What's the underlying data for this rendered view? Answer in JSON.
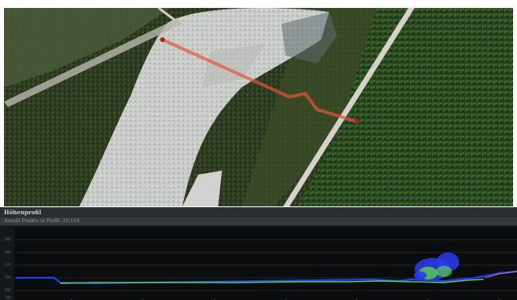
{
  "profile_panel": {
    "title": "Höhenprofil",
    "points_label": "Anzahl Punkte in Profil:",
    "points_value": "20,119"
  },
  "y_axis": {
    "tick_labels": [
      "290",
      "280",
      "270",
      "260",
      "250",
      "240"
    ]
  },
  "colors": {
    "profile_line": "#e8533c",
    "panel_bg": "#2a2e30",
    "plot_bg": "#1b1e20",
    "points_blue": "#2a3cf0",
    "points_green": "#56d24a"
  }
}
